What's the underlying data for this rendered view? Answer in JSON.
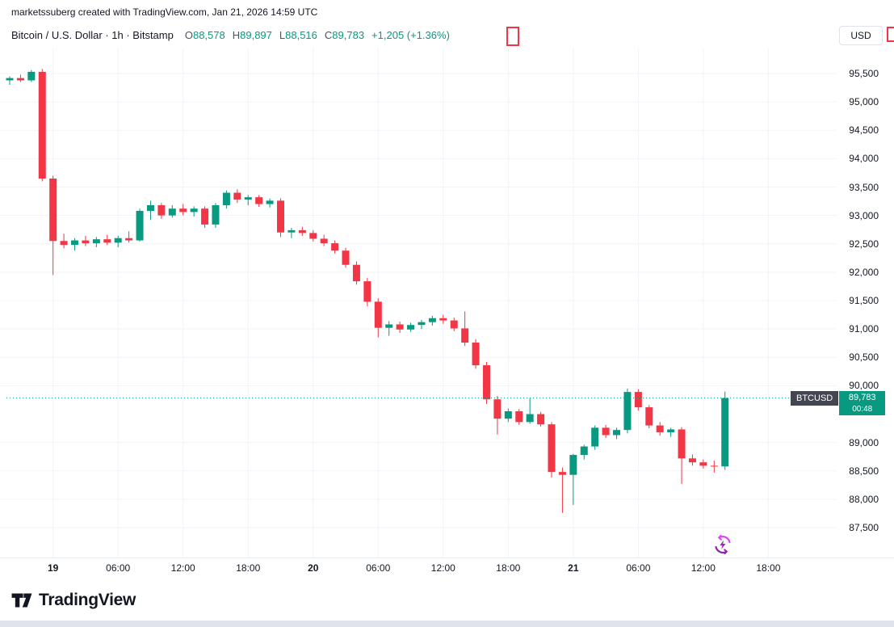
{
  "attribution": "marketssuberg created with TradingView.com, Jan 21, 2026 14:59 UTC",
  "header": {
    "symbol_title": "Bitcoin / U.S. Dollar · 1h · Bitstamp",
    "ohlc": {
      "o_label": "O",
      "o": "88,578",
      "h_label": "H",
      "h": "89,897",
      "l_label": "L",
      "l": "88,516",
      "c_label": "C",
      "c": "89,783",
      "change": "+1,205 (+1.36%)"
    },
    "currency_button": "USD"
  },
  "last_price": {
    "symbol_badge": "BTCUSD",
    "price": "89,783",
    "countdown": "00:48",
    "value": 89783,
    "color": "#089981"
  },
  "price_scale": {
    "ticks": [
      {
        "label": "95,500",
        "value": 95500
      },
      {
        "label": "95,000",
        "value": 95000
      },
      {
        "label": "94,500",
        "value": 94500
      },
      {
        "label": "94,000",
        "value": 94000
      },
      {
        "label": "93,500",
        "value": 93500
      },
      {
        "label": "93,000",
        "value": 93000
      },
      {
        "label": "92,500",
        "value": 92500
      },
      {
        "label": "92,000",
        "value": 92000
      },
      {
        "label": "91,500",
        "value": 91500
      },
      {
        "label": "91,000",
        "value": 91000
      },
      {
        "label": "90,500",
        "value": 90500
      },
      {
        "label": "90,000",
        "value": 90000
      },
      {
        "label": "89,000",
        "value": 89000
      },
      {
        "label": "88,500",
        "value": 88500
      },
      {
        "label": "88,000",
        "value": 88000
      },
      {
        "label": "87,500",
        "value": 87500
      }
    ]
  },
  "time_scale": {
    "ticks": [
      {
        "label": "19",
        "index": 4,
        "bold": true
      },
      {
        "label": "06:00",
        "index": 10,
        "bold": false
      },
      {
        "label": "12:00",
        "index": 16,
        "bold": false
      },
      {
        "label": "18:00",
        "index": 22,
        "bold": false
      },
      {
        "label": "20",
        "index": 28,
        "bold": true
      },
      {
        "label": "06:00",
        "index": 34,
        "bold": false
      },
      {
        "label": "12:00",
        "index": 40,
        "bold": false
      },
      {
        "label": "18:00",
        "index": 46,
        "bold": false
      },
      {
        "label": "21",
        "index": 52,
        "bold": true
      },
      {
        "label": "06:00",
        "index": 58,
        "bold": false
      },
      {
        "label": "12:00",
        "index": 64,
        "bold": false
      },
      {
        "label": "18:00",
        "index": 70,
        "bold": false
      }
    ]
  },
  "footer": {
    "logo_text": "TradingView"
  },
  "colors": {
    "up": "#089981",
    "down": "#f23645",
    "text": "#131722",
    "muted": "#50535e",
    "grid": "#f0f3fa",
    "axis_border": "#e9ecf1",
    "flash_pink": "#e040fb",
    "flash_purple": "#8e24aa"
  },
  "chart_data": {
    "type": "candlestick",
    "title": "Bitcoin / U.S. Dollar",
    "symbol": "BTCUSD",
    "interval": "1h",
    "exchange": "Bitstamp",
    "ylim": [
      87250,
      95750
    ],
    "grid": "faint",
    "legend_position": "top-left",
    "current_bar": {
      "open": 88578,
      "high": 89897,
      "low": 88516,
      "close": 89783,
      "change": 1205,
      "change_pct": 1.36
    },
    "columns": [
      "time",
      "open",
      "high",
      "low",
      "close"
    ],
    "candles": [
      [
        "Jan 18 20:00",
        95380,
        95450,
        95300,
        95420
      ],
      [
        "Jan 18 21:00",
        95420,
        95480,
        95350,
        95380
      ],
      [
        "Jan 18 22:00",
        95380,
        95560,
        95350,
        95530
      ],
      [
        "Jan 18 23:00",
        95530,
        95580,
        93600,
        93650
      ],
      [
        "Jan 19 00:00",
        93650,
        93700,
        91950,
        92550
      ],
      [
        "Jan 19 01:00",
        92550,
        92680,
        92420,
        92480
      ],
      [
        "Jan 19 02:00",
        92480,
        92600,
        92380,
        92560
      ],
      [
        "Jan 19 03:00",
        92560,
        92640,
        92460,
        92510
      ],
      [
        "Jan 19 04:00",
        92510,
        92620,
        92440,
        92580
      ],
      [
        "Jan 19 05:00",
        92580,
        92660,
        92480,
        92520
      ],
      [
        "Jan 19 06:00",
        92520,
        92640,
        92440,
        92600
      ],
      [
        "Jan 19 07:00",
        92600,
        92720,
        92520,
        92560
      ],
      [
        "Jan 19 08:00",
        92560,
        93120,
        92540,
        93080
      ],
      [
        "Jan 19 09:00",
        93080,
        93260,
        92920,
        93180
      ],
      [
        "Jan 19 10:00",
        93180,
        93220,
        92940,
        93000
      ],
      [
        "Jan 19 11:00",
        93000,
        93180,
        92960,
        93120
      ],
      [
        "Jan 19 12:00",
        93120,
        93200,
        93000,
        93060
      ],
      [
        "Jan 19 13:00",
        93060,
        93160,
        92980,
        93120
      ],
      [
        "Jan 19 14:00",
        93120,
        93160,
        92780,
        92840
      ],
      [
        "Jan 19 15:00",
        92840,
        93220,
        92780,
        93180
      ],
      [
        "Jan 19 16:00",
        93180,
        93440,
        93120,
        93400
      ],
      [
        "Jan 19 17:00",
        93400,
        93460,
        93220,
        93280
      ],
      [
        "Jan 19 18:00",
        93280,
        93360,
        93180,
        93320
      ],
      [
        "Jan 19 19:00",
        93320,
        93360,
        93150,
        93200
      ],
      [
        "Jan 19 20:00",
        93200,
        93300,
        93140,
        93260
      ],
      [
        "Jan 19 21:00",
        93260,
        93300,
        92620,
        92700
      ],
      [
        "Jan 19 22:00",
        92700,
        92780,
        92600,
        92740
      ],
      [
        "Jan 19 23:00",
        92740,
        92800,
        92640,
        92690
      ],
      [
        "Jan 20 00:00",
        92690,
        92740,
        92540,
        92590
      ],
      [
        "Jan 20 01:00",
        92590,
        92660,
        92460,
        92510
      ],
      [
        "Jan 20 02:00",
        92510,
        92560,
        92330,
        92380
      ],
      [
        "Jan 20 03:00",
        92380,
        92430,
        92080,
        92130
      ],
      [
        "Jan 20 04:00",
        92130,
        92190,
        91780,
        91840
      ],
      [
        "Jan 20 05:00",
        91840,
        91900,
        91400,
        91480
      ],
      [
        "Jan 20 06:00",
        91480,
        91540,
        90850,
        91020
      ],
      [
        "Jan 20 07:00",
        91020,
        91140,
        90880,
        91080
      ],
      [
        "Jan 20 08:00",
        91080,
        91130,
        90930,
        90990
      ],
      [
        "Jan 20 09:00",
        90990,
        91110,
        90950,
        91070
      ],
      [
        "Jan 20 10:00",
        91070,
        91160,
        91000,
        91120
      ],
      [
        "Jan 20 11:00",
        91120,
        91230,
        91060,
        91190
      ],
      [
        "Jan 20 12:00",
        91190,
        91250,
        91090,
        91150
      ],
      [
        "Jan 20 13:00",
        91150,
        91200,
        90960,
        91010
      ],
      [
        "Jan 20 14:00",
        91010,
        91310,
        90700,
        90760
      ],
      [
        "Jan 20 15:00",
        90760,
        90820,
        90300,
        90360
      ],
      [
        "Jan 20 16:00",
        90360,
        90420,
        89680,
        89760
      ],
      [
        "Jan 20 17:00",
        89760,
        89820,
        89140,
        89420
      ],
      [
        "Jan 20 18:00",
        89420,
        89600,
        89360,
        89550
      ],
      [
        "Jan 20 19:00",
        89550,
        89590,
        89310,
        89360
      ],
      [
        "Jan 20 20:00",
        89360,
        89780,
        89330,
        89500
      ],
      [
        "Jan 20 21:00",
        89500,
        89540,
        89280,
        89320
      ],
      [
        "Jan 20 22:00",
        89320,
        89360,
        88380,
        88480
      ],
      [
        "Jan 20 23:00",
        88480,
        88560,
        87760,
        88430
      ],
      [
        "Jan 21 00:00",
        88430,
        88800,
        87900,
        88780
      ],
      [
        "Jan 21 01:00",
        88780,
        88960,
        88700,
        88930
      ],
      [
        "Jan 21 02:00",
        88930,
        89300,
        88870,
        89260
      ],
      [
        "Jan 21 03:00",
        89260,
        89310,
        89080,
        89130
      ],
      [
        "Jan 21 04:00",
        89130,
        89260,
        89060,
        89220
      ],
      [
        "Jan 21 05:00",
        89220,
        89950,
        89160,
        89890
      ],
      [
        "Jan 21 06:00",
        89890,
        89940,
        89560,
        89620
      ],
      [
        "Jan 21 07:00",
        89620,
        89660,
        89250,
        89300
      ],
      [
        "Jan 21 08:00",
        89300,
        89360,
        89120,
        89180
      ],
      [
        "Jan 21 09:00",
        89180,
        89260,
        89100,
        89230
      ],
      [
        "Jan 21 10:00",
        89230,
        89270,
        88270,
        88720
      ],
      [
        "Jan 21 11:00",
        88720,
        88790,
        88590,
        88650
      ],
      [
        "Jan 21 12:00",
        88650,
        88700,
        88540,
        88590
      ],
      [
        "Jan 21 13:00",
        88590,
        88680,
        88470,
        88578
      ],
      [
        "Jan 21 14:00",
        88578,
        89897,
        88516,
        89783
      ]
    ]
  }
}
